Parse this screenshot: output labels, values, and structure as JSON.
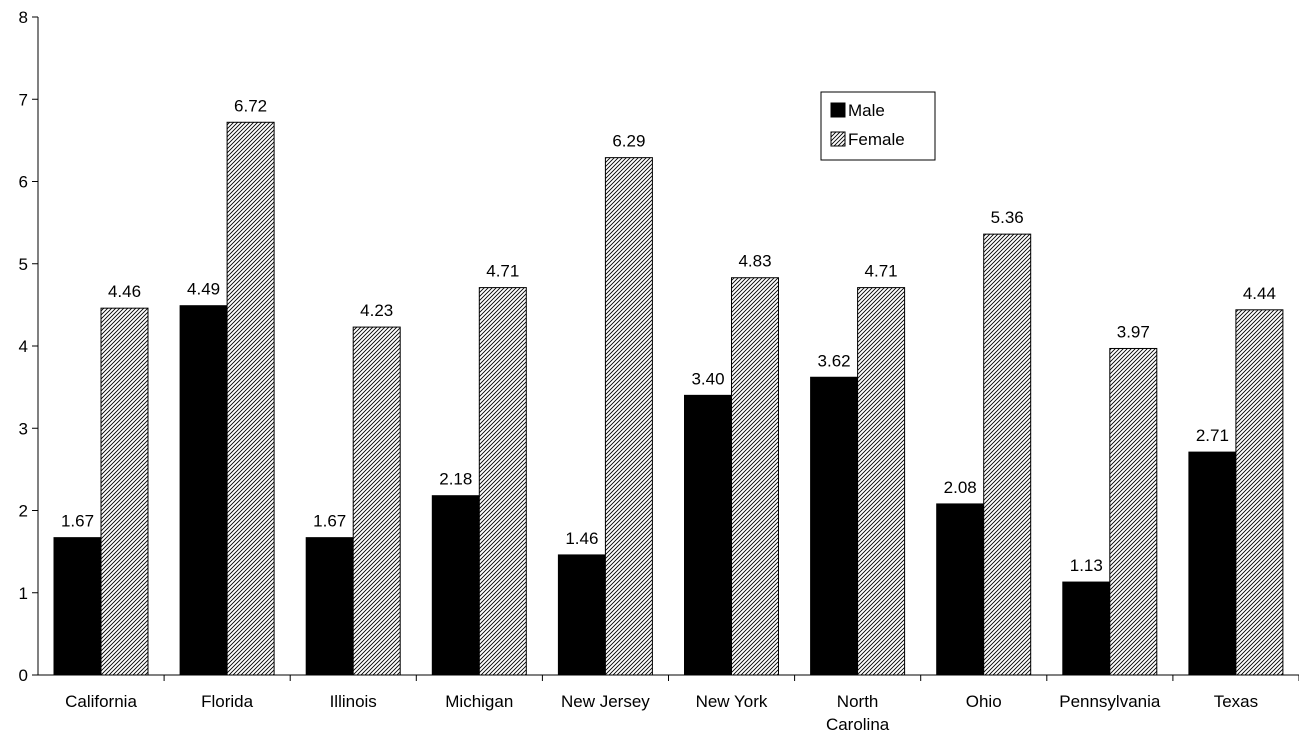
{
  "chart_data": {
    "type": "bar",
    "categories": [
      [
        "California"
      ],
      [
        "Florida"
      ],
      [
        "Illinois"
      ],
      [
        "Michigan"
      ],
      [
        "New Jersey"
      ],
      [
        "New York"
      ],
      [
        "North",
        "Carolina"
      ],
      [
        "Ohio"
      ],
      [
        "Pennsylvania"
      ],
      [
        "Texas"
      ]
    ],
    "series": [
      {
        "name": "Male",
        "values": [
          1.67,
          4.49,
          1.67,
          2.18,
          1.46,
          3.4,
          3.62,
          2.08,
          1.13,
          2.71
        ],
        "labels": [
          "1.67",
          "4.49",
          "1.67",
          "2.18",
          "1.46",
          "3.40",
          "3.62",
          "2.08",
          "1.13",
          "2.71"
        ],
        "color": "#000000",
        "pattern": "solid"
      },
      {
        "name": "Female",
        "values": [
          4.46,
          6.72,
          4.23,
          4.71,
          6.29,
          4.83,
          4.71,
          5.36,
          3.97,
          4.44
        ],
        "labels": [
          "4.46",
          "6.72",
          "4.23",
          "4.71",
          "6.29",
          "4.83",
          "4.71",
          "5.36",
          "3.97",
          "4.44"
        ],
        "color": "#000000",
        "pattern": "diagonal-hatch"
      }
    ],
    "ylim": [
      0,
      8
    ],
    "yticks": [
      "0",
      "1",
      "2",
      "3",
      "4",
      "5",
      "6",
      "7",
      "8"
    ],
    "grid": false,
    "legend_position": "top-right"
  }
}
